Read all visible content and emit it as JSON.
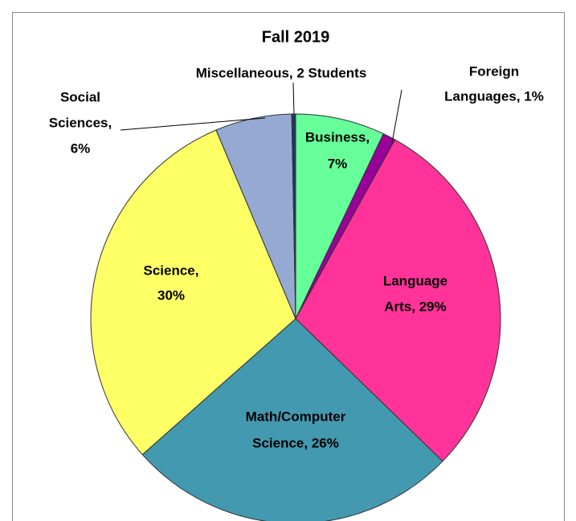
{
  "chart_data": {
    "type": "pie",
    "title": "Fall 2019",
    "labels": [
      [
        "Business,",
        "7%"
      ],
      [
        "Foreign",
        "Languages, 1%"
      ],
      [
        "Language",
        "Arts, 29%"
      ],
      [
        "Math/Computer",
        "Science, 26%"
      ],
      [
        "Science,",
        "30%"
      ],
      [
        "Social",
        "Sciences,",
        "6%"
      ],
      [
        "Miscellaneous, 2 Students"
      ]
    ],
    "values": [
      7,
      1,
      29,
      26,
      30,
      6,
      0.3
    ],
    "colors": [
      "#66ff99",
      "#990099",
      "#ff3399",
      "#4399b0",
      "#ffff66",
      "#95a9d3",
      "#1f3864"
    ]
  }
}
